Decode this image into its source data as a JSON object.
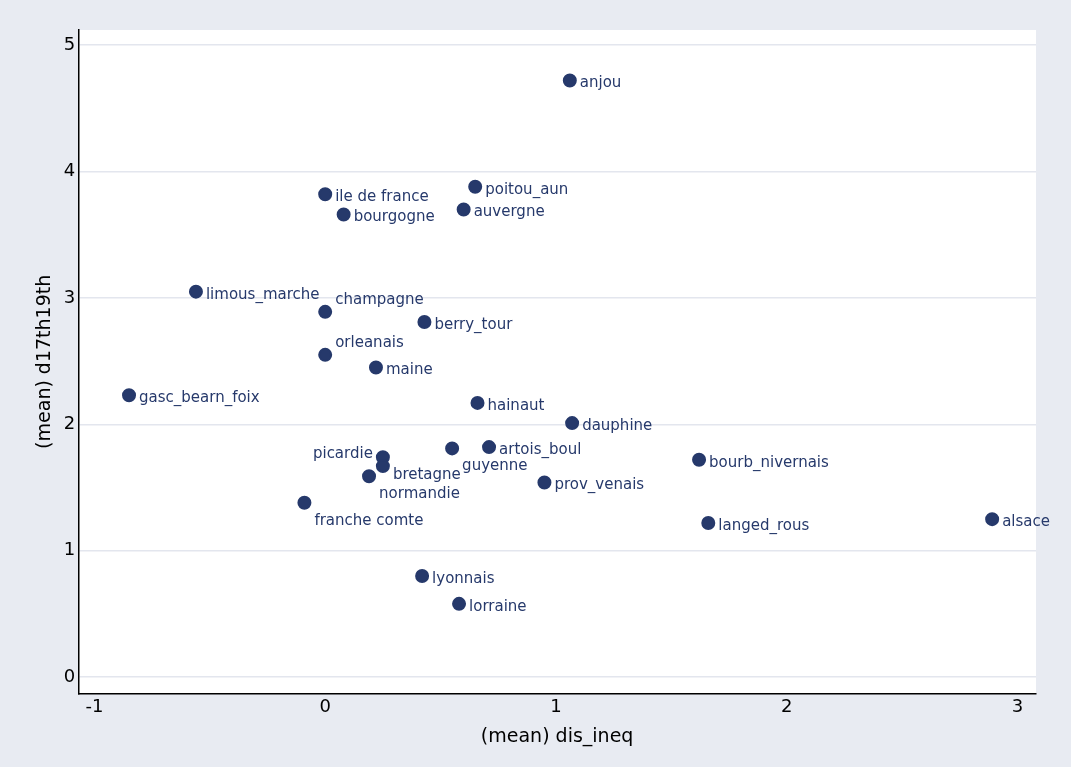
{
  "chart_data": {
    "type": "scatter",
    "xlabel": "(mean) dis_ineq",
    "ylabel": "(mean) d17th19th",
    "xlim": [
      -1.07,
      3.08
    ],
    "xticks": [
      -1,
      0,
      1,
      2,
      3
    ],
    "ylim": [
      -0.13,
      5.12
    ],
    "yticks": [
      0,
      1,
      2,
      3,
      4,
      5
    ],
    "grid": "y",
    "legend": false,
    "marker": "circle",
    "series": [
      {
        "color": "#26396b",
        "x": [
          1.06,
          0,
          0.65,
          0.08,
          0.6,
          -0.56,
          0,
          0.43,
          0,
          0.22,
          -0.85,
          0.66,
          1.07,
          0.55,
          0.71,
          0.25,
          0.25,
          0.19,
          1.62,
          0.95,
          -0.09,
          1.66,
          2.89,
          0.42,
          0.58
        ],
        "values": [
          4.72,
          3.82,
          3.88,
          3.66,
          3.7,
          3.05,
          2.89,
          2.81,
          2.55,
          2.45,
          2.23,
          2.17,
          2.01,
          1.81,
          1.82,
          1.74,
          1.67,
          1.59,
          1.72,
          1.54,
          1.38,
          1.22,
          1.25,
          0.8,
          0.58
        ]
      }
    ],
    "annotations": [
      {
        "text": "anjou",
        "x": 1.06,
        "y": 4.72
      },
      {
        "text": "ile de france",
        "x": 0,
        "y": 3.82
      },
      {
        "text": "poitou_aun",
        "x": 0.65,
        "y": 3.88
      },
      {
        "text": "bourgogne",
        "x": 0.08,
        "y": 3.66
      },
      {
        "text": "auvergne",
        "x": 0.6,
        "y": 3.7
      },
      {
        "text": "limous_marche",
        "x": -0.56,
        "y": 3.05
      },
      {
        "text": "champagne",
        "x": 0,
        "y": 2.89
      },
      {
        "text": "berry_tour",
        "x": 0.43,
        "y": 2.81
      },
      {
        "text": "orleanais",
        "x": 0,
        "y": 2.55
      },
      {
        "text": "maine",
        "x": 0.22,
        "y": 2.45
      },
      {
        "text": "gasc_bearn_foix",
        "x": -0.85,
        "y": 2.23
      },
      {
        "text": "hainaut",
        "x": 0.66,
        "y": 2.17
      },
      {
        "text": "dauphine",
        "x": 1.07,
        "y": 2.01
      },
      {
        "text": "guyenne",
        "x": 0.55,
        "y": 1.81
      },
      {
        "text": "artois_boul",
        "x": 0.71,
        "y": 1.82
      },
      {
        "text": "bretagne",
        "x": 0.25,
        "y": 1.74
      },
      {
        "text": "picardie",
        "x": 0.25,
        "y": 1.67
      },
      {
        "text": "normandie",
        "x": 0.19,
        "y": 1.59
      },
      {
        "text": "bourb_nivernais",
        "x": 1.62,
        "y": 1.72
      },
      {
        "text": "prov_venais",
        "x": 0.95,
        "y": 1.54
      },
      {
        "text": "franche comte",
        "x": -0.09,
        "y": 1.38
      },
      {
        "text": "langed_rous",
        "x": 1.66,
        "y": 1.22
      },
      {
        "text": "alsace",
        "x": 2.89,
        "y": 1.25
      },
      {
        "text": "lyonnais",
        "x": 0.42,
        "y": 0.8
      },
      {
        "text": "lorraine",
        "x": 0.58,
        "y": 0.58
      }
    ]
  }
}
